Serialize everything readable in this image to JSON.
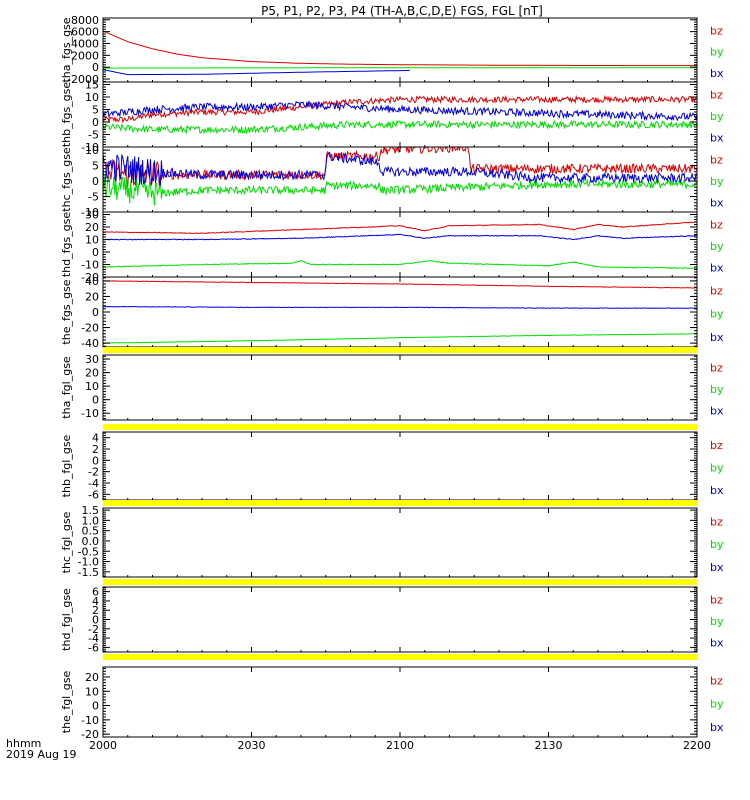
{
  "chart_data": {
    "type": "line",
    "title": "P5, P1, P2, P3, P4 (TH-A,B,C,D,E) FGS, FGL [nT]",
    "x_ticks": [
      "2000",
      "2030",
      "2100",
      "2130",
      "2200"
    ],
    "x_range_minutes": [
      0,
      120
    ],
    "x_tick_minutes": [
      0,
      30,
      60,
      90,
      120
    ],
    "corner_label_1": "hhmm",
    "corner_label_2": "2019 Aug 19",
    "legend_colors": {
      "bz": "#dd0000",
      "by": "#00dd00",
      "bx": "#0000dd"
    },
    "panels": [
      {
        "ylabel": "tha_fgs_gse",
        "yrange": [
          -2500,
          8300
        ],
        "yticks": [
          8000,
          6000,
          4000,
          2000,
          0,
          -2000
        ],
        "ytick_labels": [
          "8000",
          "6000",
          "4000",
          "2000",
          "0",
          "-2000"
        ],
        "legend": [
          "bz",
          "by",
          "bx"
        ],
        "series": [
          {
            "name": "bz",
            "color": "#dd0000",
            "noise": 0,
            "data": [
              [
                0,
                6100
              ],
              [
                5,
                4300
              ],
              [
                10,
                3100
              ],
              [
                15,
                2200
              ],
              [
                20,
                1600
              ],
              [
                30,
                950
              ],
              [
                40,
                650
              ],
              [
                50,
                500
              ],
              [
                60,
                420
              ],
              [
                80,
                330
              ],
              [
                100,
                280
              ],
              [
                120,
                260
              ]
            ]
          },
          {
            "name": "by",
            "color": "#00dd00",
            "noise": 0,
            "data": [
              [
                0,
                -150
              ],
              [
                30,
                -120
              ],
              [
                60,
                -100
              ],
              [
                90,
                -100
              ],
              [
                120,
                -100
              ]
            ]
          },
          {
            "name": "bx",
            "color": "#0000dd",
            "noise": 0,
            "data": [
              [
                0,
                -400
              ],
              [
                5,
                -1250
              ],
              [
                20,
                -1200
              ],
              [
                40,
                -850
              ],
              [
                62,
                -550
              ]
            ]
          }
        ],
        "bars": []
      },
      {
        "ylabel": "thb_fgs_gse",
        "yrange": [
          -10,
          16
        ],
        "yticks": [
          15,
          10,
          5,
          0,
          -5,
          -10
        ],
        "ytick_labels": [
          "15",
          "10",
          "5",
          "0",
          "-5",
          "-10"
        ],
        "legend": [
          "bz",
          "by",
          "bx"
        ],
        "series": [
          {
            "name": "bz",
            "color": "#dd0000",
            "noise": 1.2,
            "data": [
              [
                0,
                1
              ],
              [
                5,
                1
              ],
              [
                10,
                3
              ],
              [
                20,
                4
              ],
              [
                30,
                4
              ],
              [
                40,
                6
              ],
              [
                50,
                8
              ],
              [
                60,
                9
              ],
              [
                80,
                9
              ],
              [
                100,
                9
              ],
              [
                120,
                9
              ]
            ]
          },
          {
            "name": "by",
            "color": "#00dd00",
            "noise": 1.4,
            "data": [
              [
                0,
                -2
              ],
              [
                10,
                -3
              ],
              [
                20,
                -3
              ],
              [
                30,
                -3
              ],
              [
                40,
                -2
              ],
              [
                50,
                -1
              ],
              [
                60,
                -1
              ],
              [
                80,
                -1
              ],
              [
                100,
                -1
              ],
              [
                120,
                -1
              ]
            ]
          },
          {
            "name": "bx",
            "color": "#0000dd",
            "noise": 1.5,
            "data": [
              [
                0,
                3
              ],
              [
                10,
                5
              ],
              [
                20,
                6
              ],
              [
                30,
                6
              ],
              [
                40,
                7
              ],
              [
                50,
                6
              ],
              [
                60,
                5
              ],
              [
                80,
                4
              ],
              [
                100,
                3
              ],
              [
                120,
                2
              ]
            ]
          }
        ],
        "bars": []
      },
      {
        "ylabel": "thc_fgs_gse",
        "yrange": [
          -10,
          11
        ],
        "yticks": [
          10,
          5,
          0,
          -5,
          -10
        ],
        "ytick_labels": [
          "10",
          "5",
          "0",
          "-5",
          "-10"
        ],
        "legend": [
          "bz",
          "by",
          "bx"
        ],
        "series": [
          {
            "name": "bz",
            "color": "#dd0000",
            "noise": 1.5,
            "data": [
              [
                0,
                3
              ],
              [
                5,
                2
              ],
              [
                10,
                2
              ],
              [
                20,
                2
              ],
              [
                30,
                2
              ],
              [
                44.8,
                2
              ],
              [
                45.2,
                8
              ],
              [
                55.8,
                8
              ],
              [
                56.2,
                10
              ],
              [
                73.8,
                11
              ],
              [
                74.2,
                4
              ],
              [
                90,
                4
              ],
              [
                120,
                4
              ]
            ]
          },
          {
            "name": "by",
            "color": "#00dd00",
            "noise": 1.3,
            "data": [
              [
                0,
                -2
              ],
              [
                10,
                -4
              ],
              [
                20,
                -3
              ],
              [
                30,
                -3
              ],
              [
                44.8,
                -3
              ],
              [
                45.2,
                -1.5
              ],
              [
                55.8,
                -1.5
              ],
              [
                56.2,
                -3
              ],
              [
                74,
                -2
              ],
              [
                90,
                -1
              ],
              [
                120,
                -1
              ]
            ]
          },
          {
            "name": "bx",
            "color": "#0000dd",
            "noise": 1.5,
            "data": [
              [
                0,
                5
              ],
              [
                10,
                3
              ],
              [
                20,
                2
              ],
              [
                30,
                2
              ],
              [
                44.8,
                2
              ],
              [
                45.2,
                8
              ],
              [
                55.8,
                6
              ],
              [
                56.2,
                3
              ],
              [
                74,
                3
              ],
              [
                88,
                1
              ],
              [
                120,
                1
              ]
            ]
          }
        ],
        "bars": []
      },
      {
        "ylabel": "thd_fgs_gse",
        "yrange": [
          -20,
          32
        ],
        "yticks": [
          30,
          20,
          10,
          0,
          -10,
          -20
        ],
        "ytick_labels": [
          "30",
          "20",
          "10",
          "0",
          "-10",
          "-20"
        ],
        "legend": [
          "bz",
          "by",
          "bx"
        ],
        "series": [
          {
            "name": "bz",
            "color": "#dd0000",
            "noise": 0.3,
            "data": [
              [
                0,
                16
              ],
              [
                20,
                15
              ],
              [
                40,
                18
              ],
              [
                60,
                21
              ],
              [
                65,
                17
              ],
              [
                70,
                21
              ],
              [
                88,
                22
              ],
              [
                95,
                18
              ],
              [
                100,
                22
              ],
              [
                105,
                20
              ],
              [
                120,
                24
              ]
            ]
          },
          {
            "name": "by",
            "color": "#00dd00",
            "noise": 0.3,
            "data": [
              [
                0,
                -12
              ],
              [
                20,
                -10
              ],
              [
                38,
                -9
              ],
              [
                40,
                -7
              ],
              [
                42,
                -10
              ],
              [
                55,
                -10
              ],
              [
                60,
                -10
              ],
              [
                66,
                -7
              ],
              [
                70,
                -9
              ],
              [
                90,
                -11
              ],
              [
                95,
                -8
              ],
              [
                100,
                -12
              ],
              [
                120,
                -13
              ]
            ]
          },
          {
            "name": "bx",
            "color": "#0000dd",
            "noise": 0.3,
            "data": [
              [
                0,
                10
              ],
              [
                20,
                10
              ],
              [
                40,
                11
              ],
              [
                60,
                14
              ],
              [
                65,
                11
              ],
              [
                70,
                13
              ],
              [
                88,
                13
              ],
              [
                95,
                10
              ],
              [
                100,
                13
              ],
              [
                105,
                11
              ],
              [
                120,
                13
              ]
            ]
          }
        ],
        "bars": []
      },
      {
        "ylabel": "the_fgs_gse",
        "yrange": [
          -45,
          45
        ],
        "yticks": [
          40,
          20,
          0,
          -20,
          -40
        ],
        "ytick_labels": [
          "40",
          "20",
          "0",
          "-20",
          "-40"
        ],
        "legend": [
          "bz",
          "by",
          "bx"
        ],
        "series": [
          {
            "name": "bz",
            "color": "#dd0000",
            "noise": 0.3,
            "data": [
              [
                0,
                40
              ],
              [
                30,
                38
              ],
              [
                60,
                36
              ],
              [
                90,
                33
              ],
              [
                120,
                31
              ]
            ]
          },
          {
            "name": "by",
            "color": "#00dd00",
            "noise": 0.3,
            "data": [
              [
                0,
                -40
              ],
              [
                30,
                -37
              ],
              [
                60,
                -33
              ],
              [
                90,
                -30
              ],
              [
                120,
                -28
              ]
            ]
          },
          {
            "name": "bx",
            "color": "#0000dd",
            "noise": 0.3,
            "data": [
              [
                0,
                7
              ],
              [
                30,
                6
              ],
              [
                60,
                6
              ],
              [
                90,
                5
              ],
              [
                120,
                5
              ]
            ]
          }
        ],
        "bars": []
      },
      {
        "ylabel": "tha_fgl_gse",
        "yrange": [
          -15,
          33
        ],
        "yticks": [
          30,
          20,
          10,
          0,
          -10
        ],
        "ytick_labels": [
          "30",
          "20",
          "10",
          "0",
          "-10"
        ],
        "legend": [
          "bz",
          "by",
          "bx"
        ],
        "series": [],
        "bars": [
          {
            "color": "#ffff00",
            "position": "top"
          }
        ]
      },
      {
        "ylabel": "thb_fgl_gse",
        "yrange": [
          -7,
          5
        ],
        "yticks": [
          4,
          2,
          0,
          -2,
          -4,
          -6
        ],
        "ytick_labels": [
          "4",
          "2",
          "0",
          "-2",
          "-4",
          "-6"
        ],
        "legend": [
          "bz",
          "by",
          "bx"
        ],
        "series": [],
        "bars": [
          {
            "color": "#ffff00",
            "position": "top"
          }
        ]
      },
      {
        "ylabel": "thc_fgl_gse",
        "yrange": [
          -1.75,
          1.6
        ],
        "yticks": [
          1.5,
          1.0,
          0.5,
          0.0,
          -0.5,
          -1.0,
          -1.5
        ],
        "ytick_labels": [
          "1.5",
          "1.0",
          "0.5",
          "0.0",
          "-0.5",
          "-1.0",
          "-1.5"
        ],
        "legend": [
          "bz",
          "by",
          "bx"
        ],
        "series": [],
        "bars": [
          {
            "color": "#ffff00",
            "position": "top"
          }
        ]
      },
      {
        "ylabel": "thd_fgl_gse",
        "yrange": [
          -7,
          7
        ],
        "yticks": [
          6,
          4,
          2,
          0,
          -2,
          -4,
          -6
        ],
        "ytick_labels": [
          "6",
          "4",
          "2",
          "0",
          "-2",
          "-4",
          "-6"
        ],
        "legend": [
          "bz",
          "by",
          "bx"
        ],
        "series": [],
        "bars": [
          {
            "color": "#ffff00",
            "position": "top"
          },
          {
            "color": "#ffff00",
            "position": "bottom"
          }
        ]
      },
      {
        "ylabel": "the_fgl_gse",
        "yrange": [
          -22,
          27
        ],
        "yticks": [
          20,
          10,
          0,
          -10,
          -20
        ],
        "ytick_labels": [
          "20",
          "10",
          "0",
          "-10",
          "-20"
        ],
        "legend": [
          "bz",
          "by",
          "bx"
        ],
        "series": [],
        "bars": []
      }
    ]
  }
}
